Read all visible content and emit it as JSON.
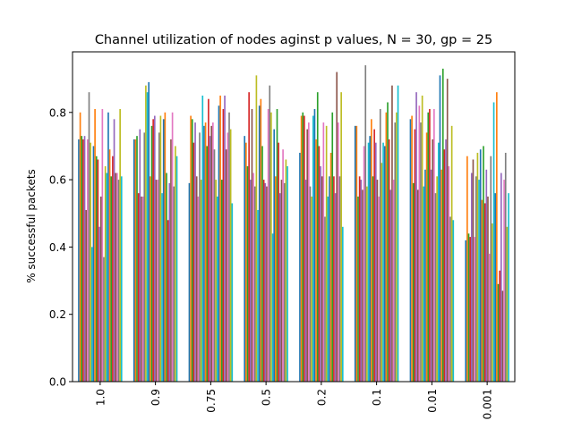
{
  "chart_data": {
    "type": "bar",
    "title": "Channel utilization of nodes aginst p values, N = 30, gp = 25",
    "xlabel": "",
    "ylabel": "% successful packets",
    "categories": [
      "1.0",
      "0.9",
      "0.75",
      "0.5",
      "0.2",
      "0.1",
      "0.01",
      "0.001"
    ],
    "ylim": [
      0,
      0.98
    ],
    "yticks": [
      "0.0",
      "0.2",
      "0.4",
      "0.6",
      "0.8"
    ],
    "grid": false,
    "legend": "none",
    "colors": [
      "#1f77b4",
      "#ff7f0e",
      "#2ca02c",
      "#d62728",
      "#9467bd",
      "#8c564b",
      "#e377c2",
      "#7f7f7f",
      "#bcbd22",
      "#17becf"
    ],
    "series_values": [
      [
        0.72,
        0.8,
        0.73,
        0.72,
        0.73,
        0.51,
        0.72,
        0.86,
        0.71,
        0.4,
        0.7,
        0.81,
        0.67,
        0.66,
        0.46,
        0.55,
        0.81,
        0.37,
        0.64,
        0.62,
        0.8,
        0.69,
        0.61,
        0.67,
        0.78,
        0.62,
        0.62,
        0.6,
        0.81,
        0.61
      ],
      [
        0.72,
        0.72,
        0.73,
        0.56,
        0.75,
        0.55,
        0.55,
        0.74,
        0.88,
        0.86,
        0.89,
        0.61,
        0.76,
        0.78,
        0.79,
        0.6,
        0.6,
        0.74,
        0.79,
        0.56,
        0.78,
        0.8,
        0.62,
        0.48,
        0.59,
        0.72,
        0.8,
        0.58,
        0.7,
        0.67
      ],
      [
        0.59,
        0.79,
        0.78,
        0.71,
        0.77,
        0.61,
        0.55,
        0.74,
        0.6,
        0.85,
        0.76,
        0.77,
        0.7,
        0.84,
        0.73,
        0.76,
        0.77,
        0.69,
        0.6,
        0.55,
        0.82,
        0.85,
        0.6,
        0.81,
        0.85,
        0.69,
        0.74,
        0.8,
        0.75,
        0.53
      ],
      [
        0.73,
        0.71,
        0.64,
        0.86,
        0.6,
        0.81,
        0.62,
        0.58,
        0.91,
        0.51,
        0.82,
        0.84,
        0.7,
        0.6,
        0.59,
        0.58,
        0.81,
        0.88,
        0.8,
        0.44,
        0.75,
        0.61,
        0.81,
        0.71,
        0.56,
        0.6,
        0.69,
        0.59,
        0.66,
        0.64
      ],
      [
        0.68,
        0.79,
        0.8,
        0.79,
        0.6,
        0.75,
        0.77,
        0.58,
        0.55,
        0.79,
        0.81,
        0.72,
        0.86,
        0.7,
        0.64,
        0.61,
        0.77,
        0.49,
        0.76,
        0.55,
        0.61,
        0.68,
        0.8,
        0.61,
        0.56,
        0.92,
        0.77,
        0.61,
        0.86,
        0.46
      ],
      [
        0.76,
        0.76,
        0.55,
        0.61,
        0.6,
        0.57,
        0.7,
        0.94,
        0.58,
        0.71,
        0.73,
        0.78,
        0.61,
        0.75,
        0.71,
        0.6,
        0.55,
        0.81,
        0.65,
        0.71,
        0.7,
        0.8,
        0.83,
        0.72,
        0.57,
        0.88,
        0.6,
        0.77,
        0.8,
        0.88
      ],
      [
        0.78,
        0.79,
        0.59,
        0.75,
        0.86,
        0.57,
        0.82,
        0.77,
        0.85,
        0.58,
        0.63,
        0.74,
        0.8,
        0.81,
        0.63,
        0.72,
        0.81,
        0.56,
        0.61,
        0.71,
        0.91,
        0.63,
        0.93,
        0.69,
        0.72,
        0.9,
        0.64,
        0.49,
        0.76,
        0.48
      ],
      [
        0.42,
        0.67,
        0.44,
        0.43,
        0.62,
        0.66,
        0.43,
        0.61,
        0.68,
        0.6,
        0.69,
        0.54,
        0.7,
        0.53,
        0.63,
        0.55,
        0.38,
        0.67,
        0.47,
        0.83,
        0.56,
        0.86,
        0.29,
        0.33,
        0.62,
        0.27,
        0.6,
        0.68,
        0.46,
        0.56
      ]
    ]
  }
}
